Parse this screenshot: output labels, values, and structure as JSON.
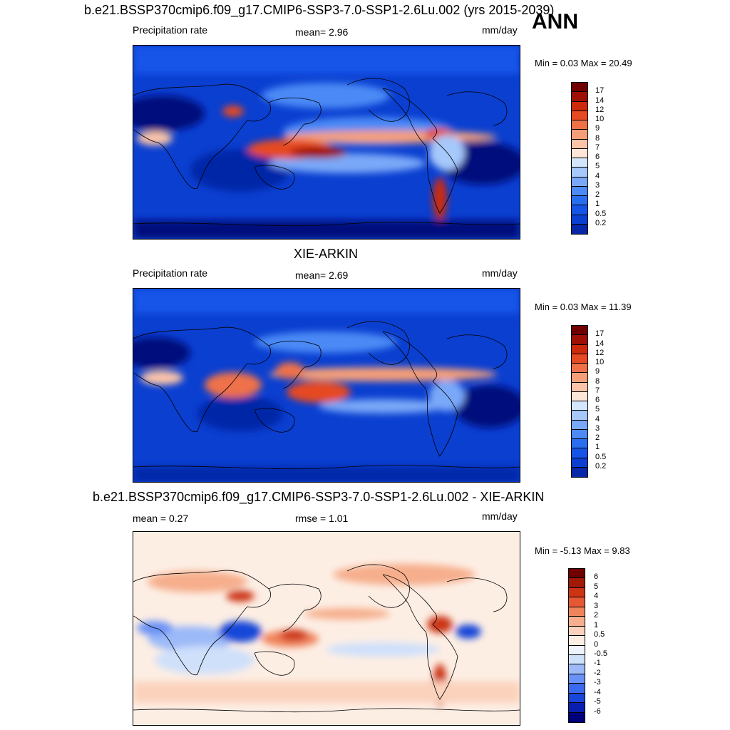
{
  "season": "ANN",
  "panels": [
    {
      "title": "b.e21.BSSP370cmip6.f09_g17.CMIP6-SSP3-7.0-SSP1-2.6Lu.002 (yrs 2015-2039)",
      "left_label": "Precipitation rate",
      "mid_label": "mean=   2.96",
      "units": "mm/day",
      "minmax": "Min =   0.03 Max =  20.49",
      "colorbar_ticks": [
        "17",
        "14",
        "12",
        "10",
        "9",
        "8",
        "7",
        "6",
        "5",
        "4",
        "3",
        "2",
        "1",
        "0.5",
        "0.2"
      ]
    },
    {
      "title": "XIE-ARKIN",
      "left_label": "Precipitation rate",
      "mid_label": "mean=   2.69",
      "units": "mm/day",
      "minmax": "Min =   0.03 Max =  11.39",
      "colorbar_ticks": [
        "17",
        "14",
        "12",
        "10",
        "9",
        "8",
        "7",
        "6",
        "5",
        "4",
        "3",
        "2",
        "1",
        "0.5",
        "0.2"
      ]
    },
    {
      "title": "b.e21.BSSP370cmip6.f09_g17.CMIP6-SSP3-7.0-SSP1-2.6Lu.002 - XIE-ARKIN",
      "left_label": "mean =   0.27",
      "mid_label": "rmse =   1.01",
      "units": "mm/day",
      "minmax": "Min =  -5.13 Max =   9.83",
      "colorbar_ticks": [
        "6",
        "5",
        "4",
        "3",
        "2",
        "1",
        "0.5",
        "0",
        "-0.5",
        "-1",
        "-2",
        "-3",
        "-4",
        "-5",
        "-6"
      ]
    }
  ],
  "colors": {
    "precip_scale": [
      "#000b7c",
      "#0527a8",
      "#0a3fd0",
      "#1654e8",
      "#2a6ef0",
      "#4c8af6",
      "#7aa8f8",
      "#a6c8fb",
      "#d4e6fc",
      "#fde6d8",
      "#fbc4a8",
      "#f59f78",
      "#ee7148",
      "#e64a22",
      "#cc2a0a",
      "#9e1004",
      "#700000"
    ],
    "diff_scale": [
      "#00007a",
      "#0a1fb0",
      "#1846d8",
      "#3a6af0",
      "#6a92f6",
      "#9cbaf8",
      "#cfe0fb",
      "#f0f4fd",
      "#fdeee4",
      "#fbd2bc",
      "#f6ae8c",
      "#ef845c",
      "#e55832",
      "#cc3414",
      "#a01a06",
      "#700000"
    ]
  },
  "map_elements": [
    "continent-outline",
    "precipitation-field"
  ]
}
